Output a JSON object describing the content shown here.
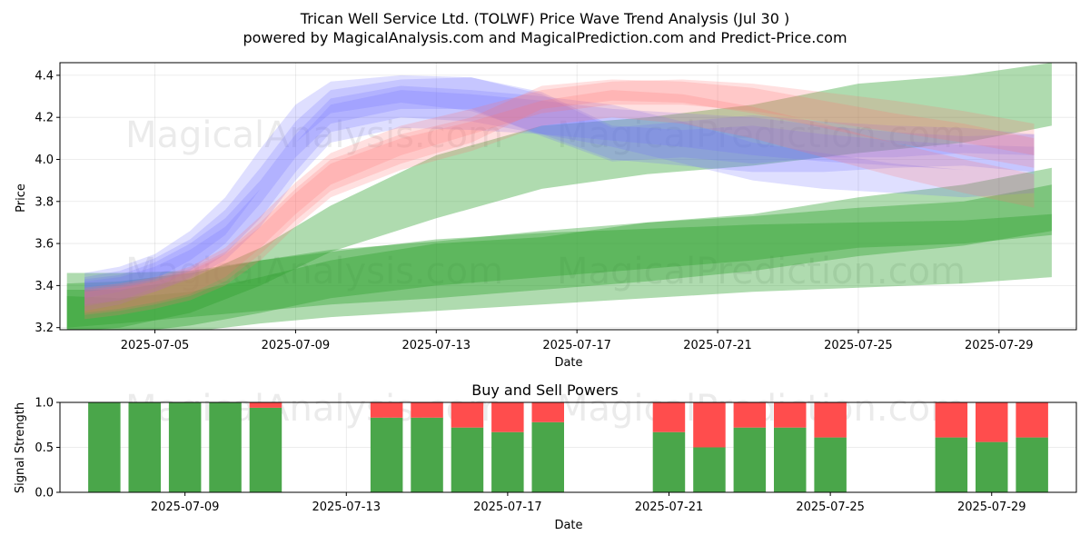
{
  "header": {
    "title": "Trican Well Service Ltd. (TOLWF) Price Wave Trend Analysis (Jul 30 )",
    "subtitle": "powered by MagicalAnalysis.com and MagicalPrediction.com and Predict-Price.com"
  },
  "watermarks": [
    "MagicalAnalysis.com",
    "MagicalPrediction.com",
    "MagicalAnalysis.com",
    "MagicalPrediction.com",
    "MagicalAnalysis.com",
    "MagicalPrediction.com"
  ],
  "colors": {
    "green": "#2ca02c",
    "blue": "#6f6fff",
    "red": "#ff7070",
    "buy": "#4aa64a",
    "sell": "#ff4d4d"
  },
  "chart_data": [
    {
      "type": "area",
      "title": "",
      "xlabel": "Date",
      "ylabel": "Price",
      "x_tick_labels": [
        "2025-07-05",
        "2025-07-09",
        "2025-07-13",
        "2025-07-17",
        "2025-07-21",
        "2025-07-25",
        "2025-07-29"
      ],
      "y_tick_labels": [
        "3.2",
        "3.4",
        "3.6",
        "3.8",
        "4.0",
        "4.2",
        "4.4"
      ],
      "xlim_days": [
        2.3,
        31.2
      ],
      "ylim": [
        3.19,
        4.46
      ],
      "grid": true,
      "series": [
        {
          "name": "green-band-1",
          "color": "green",
          "opacity": 0.38,
          "x": [
            2.5,
            4,
            6,
            8,
            10,
            13,
            16,
            19,
            22,
            25,
            28,
            30.5
          ],
          "upper": [
            3.46,
            3.46,
            3.47,
            3.52,
            3.57,
            3.61,
            3.66,
            3.7,
            3.74,
            3.82,
            3.88,
            3.96
          ],
          "lower": [
            3.15,
            3.17,
            3.21,
            3.27,
            3.34,
            3.4,
            3.44,
            3.48,
            3.52,
            3.58,
            3.6,
            3.64
          ]
        },
        {
          "name": "green-band-2",
          "color": "green",
          "opacity": 0.38,
          "x": [
            2.5,
            4,
            6,
            8,
            10,
            13,
            16,
            19,
            22,
            25,
            28,
            30.5
          ],
          "upper": [
            3.41,
            3.42,
            3.46,
            3.52,
            3.56,
            3.62,
            3.65,
            3.67,
            3.69,
            3.7,
            3.71,
            3.74
          ],
          "lower": [
            3.2,
            3.22,
            3.25,
            3.28,
            3.31,
            3.34,
            3.38,
            3.42,
            3.47,
            3.54,
            3.59,
            3.66
          ]
        },
        {
          "name": "green-band-3",
          "color": "green",
          "opacity": 0.38,
          "x": [
            2.5,
            4,
            6,
            8,
            10,
            13,
            16,
            19,
            22,
            25,
            28,
            30.5
          ],
          "upper": [
            3.35,
            3.34,
            3.37,
            3.44,
            3.52,
            3.6,
            3.63,
            3.7,
            3.73,
            3.77,
            3.8,
            3.88
          ],
          "lower": [
            3.14,
            3.16,
            3.18,
            3.22,
            3.25,
            3.28,
            3.31,
            3.34,
            3.37,
            3.39,
            3.41,
            3.44
          ]
        },
        {
          "name": "green-band-4",
          "color": "green",
          "opacity": 0.38,
          "x": [
            2.5,
            4,
            6,
            8,
            10,
            13,
            16,
            19,
            22,
            25,
            28,
            30.5
          ],
          "upper": [
            3.38,
            3.38,
            3.43,
            3.58,
            3.78,
            4.02,
            4.16,
            4.2,
            4.26,
            4.36,
            4.4,
            4.46
          ],
          "lower": [
            3.18,
            3.2,
            3.27,
            3.4,
            3.56,
            3.72,
            3.86,
            3.93,
            3.97,
            4.03,
            4.08,
            4.16
          ]
        },
        {
          "name": "blue-wave-1",
          "color": "blue",
          "opacity": 0.22,
          "x": [
            3,
            4,
            5,
            6,
            7,
            8,
            9,
            10,
            12,
            14,
            16,
            18,
            20,
            22,
            24,
            26,
            28,
            30
          ],
          "upper": [
            3.46,
            3.49,
            3.55,
            3.66,
            3.82,
            4.05,
            4.26,
            4.37,
            4.4,
            4.39,
            4.32,
            4.16,
            4.14,
            4.16,
            4.12,
            4.09,
            4.07,
            4.06
          ],
          "lower": [
            3.34,
            3.37,
            3.43,
            3.52,
            3.64,
            3.86,
            4.08,
            4.22,
            4.27,
            4.23,
            4.12,
            4.0,
            3.97,
            3.94,
            3.94,
            3.96,
            3.97,
            3.94
          ]
        },
        {
          "name": "blue-wave-2",
          "color": "blue",
          "opacity": 0.22,
          "x": [
            3,
            4,
            5,
            6,
            7,
            8,
            9,
            10,
            12,
            14,
            16,
            18,
            20,
            22,
            24,
            26,
            28,
            30
          ],
          "upper": [
            3.44,
            3.47,
            3.53,
            3.62,
            3.76,
            3.96,
            4.18,
            4.33,
            4.38,
            4.39,
            4.31,
            4.15,
            4.18,
            4.21,
            4.18,
            4.16,
            4.15,
            4.12
          ],
          "lower": [
            3.3,
            3.33,
            3.39,
            3.47,
            3.6,
            3.79,
            4.01,
            4.17,
            4.24,
            4.24,
            4.11,
            3.99,
            4.01,
            3.98,
            4.01,
            4.01,
            4.03,
            4.02
          ]
        },
        {
          "name": "blue-wave-3",
          "color": "blue",
          "opacity": 0.22,
          "x": [
            3,
            4,
            5,
            6,
            7,
            8,
            9,
            10,
            12,
            14,
            16,
            18,
            20,
            22,
            24,
            26,
            28,
            30
          ],
          "upper": [
            3.43,
            3.45,
            3.51,
            3.6,
            3.72,
            3.9,
            4.12,
            4.29,
            4.35,
            4.33,
            4.3,
            4.26,
            4.18,
            4.08,
            4.03,
            3.98,
            3.95,
            3.96
          ],
          "lower": [
            3.28,
            3.31,
            3.37,
            3.44,
            3.55,
            3.72,
            3.94,
            4.13,
            4.2,
            4.18,
            4.12,
            4.06,
            3.98,
            3.9,
            3.86,
            3.84,
            3.82,
            3.84
          ]
        },
        {
          "name": "blue-wave-4",
          "color": "blue",
          "opacity": 0.22,
          "x": [
            3,
            4,
            5,
            6,
            7,
            8,
            9,
            10,
            12,
            14,
            16,
            18,
            20,
            22,
            24,
            26,
            28,
            30
          ],
          "upper": [
            3.42,
            3.44,
            3.49,
            3.57,
            3.68,
            3.86,
            4.08,
            4.26,
            4.33,
            4.31,
            4.28,
            4.24,
            4.22,
            4.2,
            4.16,
            4.13,
            4.11,
            4.12
          ],
          "lower": [
            3.31,
            3.33,
            3.37,
            3.43,
            3.52,
            3.68,
            3.9,
            4.08,
            4.15,
            4.14,
            4.12,
            4.09,
            4.06,
            4.02,
            3.99,
            3.97,
            3.95,
            3.96
          ]
        },
        {
          "name": "red-wave-1",
          "color": "red",
          "opacity": 0.22,
          "x": [
            3,
            4,
            5,
            6,
            7,
            8,
            9,
            10,
            12,
            14,
            16,
            18,
            20,
            22,
            24,
            26,
            28,
            30
          ],
          "upper": [
            3.38,
            3.4,
            3.43,
            3.48,
            3.56,
            3.7,
            3.86,
            4.0,
            4.12,
            4.2,
            4.35,
            4.38,
            4.37,
            4.34,
            4.28,
            4.22,
            4.17,
            4.1
          ],
          "lower": [
            3.26,
            3.28,
            3.31,
            3.35,
            3.42,
            3.55,
            3.71,
            3.85,
            3.98,
            4.08,
            4.24,
            4.28,
            4.27,
            4.22,
            4.15,
            4.08,
            4.02,
            3.96
          ]
        },
        {
          "name": "red-wave-2",
          "color": "red",
          "opacity": 0.22,
          "x": [
            3,
            4,
            5,
            6,
            7,
            8,
            9,
            10,
            12,
            14,
            16,
            18,
            20,
            22,
            24,
            26,
            28,
            30
          ],
          "upper": [
            3.39,
            3.41,
            3.44,
            3.49,
            3.58,
            3.73,
            3.89,
            4.03,
            4.16,
            4.24,
            4.33,
            4.37,
            4.38,
            4.36,
            4.32,
            4.28,
            4.23,
            4.17
          ],
          "lower": [
            3.27,
            3.29,
            3.32,
            3.36,
            3.44,
            3.58,
            3.74,
            3.88,
            4.02,
            4.12,
            4.22,
            4.26,
            4.26,
            4.23,
            4.18,
            4.13,
            4.08,
            4.02
          ]
        },
        {
          "name": "red-wave-3",
          "color": "red",
          "opacity": 0.22,
          "x": [
            3,
            4,
            5,
            6,
            7,
            8,
            9,
            10,
            12,
            14,
            16,
            18,
            20,
            22,
            24,
            26,
            28,
            30
          ],
          "upper": [
            3.37,
            3.39,
            3.42,
            3.47,
            3.55,
            3.68,
            3.84,
            3.98,
            4.1,
            4.18,
            4.28,
            4.33,
            4.31,
            4.25,
            4.17,
            4.08,
            4.0,
            3.93
          ],
          "lower": [
            3.24,
            3.26,
            3.29,
            3.33,
            3.4,
            3.52,
            3.68,
            3.82,
            3.95,
            4.04,
            4.16,
            4.2,
            4.17,
            4.1,
            4.01,
            3.92,
            3.84,
            3.77
          ]
        }
      ]
    },
    {
      "type": "bar",
      "title": "Buy and Sell Powers",
      "xlabel": "Date",
      "ylabel": "Signal Strength",
      "x_tick_labels": [
        "2025-07-09",
        "2025-07-13",
        "2025-07-17",
        "2025-07-21",
        "2025-07-25",
        "2025-07-29"
      ],
      "y_tick_labels": [
        "0.0",
        "0.5",
        "1.0"
      ],
      "xlim_days": [
        5.9,
        31.1
      ],
      "ylim": [
        0,
        1
      ],
      "grid": true,
      "x_days": [
        7,
        8,
        9,
        10,
        11,
        14,
        15,
        16,
        17,
        18,
        21,
        22,
        23,
        24,
        25,
        28,
        29,
        30
      ],
      "series": [
        {
          "name": "buy",
          "color": "buy",
          "values": [
            1.0,
            1.0,
            1.0,
            1.0,
            0.94,
            0.83,
            0.83,
            0.72,
            0.67,
            0.78,
            0.67,
            0.5,
            0.72,
            0.72,
            0.61,
            0.61,
            0.56,
            0.61
          ]
        },
        {
          "name": "sell",
          "color": "sell",
          "values": [
            0.0,
            0.0,
            0.0,
            0.0,
            0.06,
            0.17,
            0.17,
            0.28,
            0.33,
            0.22,
            0.33,
            0.5,
            0.28,
            0.28,
            0.39,
            0.39,
            0.44,
            0.39
          ]
        }
      ]
    }
  ]
}
